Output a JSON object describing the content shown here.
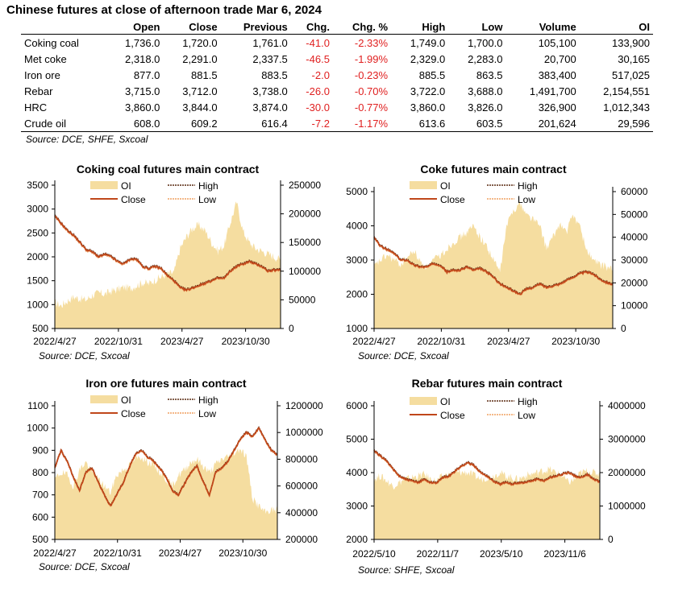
{
  "title": "Chinese futures at close of afternoon trade Mar 6, 2024",
  "table": {
    "headers": [
      "",
      "Open",
      "Close",
      "Previous",
      "Chg.",
      "Chg. %",
      "High",
      "Low",
      "Volume",
      "OI"
    ],
    "rows": [
      [
        "Coking coal",
        "1,736.0",
        "1,720.0",
        "1,761.0",
        "-41.0",
        "-2.33%",
        "1,749.0",
        "1,700.0",
        "105,100",
        "133,900"
      ],
      [
        "Met coke",
        "2,318.0",
        "2,291.0",
        "2,337.5",
        "-46.5",
        "-1.99%",
        "2,329.0",
        "2,283.0",
        "20,700",
        "30,165"
      ],
      [
        "Iron ore",
        "877.0",
        "881.5",
        "883.5",
        "-2.0",
        "-0.23%",
        "885.5",
        "863.5",
        "383,400",
        "517,025"
      ],
      [
        "Rebar",
        "3,715.0",
        "3,712.0",
        "3,738.0",
        "-26.0",
        "-0.70%",
        "3,722.0",
        "3,688.0",
        "1,491,700",
        "2,154,551"
      ],
      [
        "HRC",
        "3,860.0",
        "3,844.0",
        "3,874.0",
        "-30.0",
        "-0.77%",
        "3,860.0",
        "3,826.0",
        "326,900",
        "1,012,343"
      ],
      [
        "Crude oil",
        "608.0",
        "609.2",
        "616.4",
        "-7.2",
        "-1.17%",
        "613.6",
        "603.5",
        "201,624",
        "29,596"
      ]
    ]
  },
  "table_source": "Source: DCE, SHFE, Sxcoal",
  "colors": {
    "oi": "#f5dda0",
    "close": "#c0471a",
    "high": "#5a2a10",
    "low": "#f0a060",
    "negative": "#e02020"
  },
  "chart_data": [
    {
      "type": "area",
      "title": "Coking coal futures main contract",
      "source": "Source: DCE, Sxcoal",
      "x_ticks": [
        "2022/4/27",
        "2022/10/31",
        "2023/4/27",
        "2023/10/30"
      ],
      "y_left": {
        "min": 500,
        "max": 3500,
        "ticks": [
          "500",
          "1000",
          "1500",
          "2000",
          "2500",
          "3000",
          "3500"
        ]
      },
      "y_right": {
        "min": 0,
        "max": 250000,
        "ticks": [
          "0",
          "50000",
          "100000",
          "150000",
          "200000",
          "250000"
        ]
      },
      "legend": [
        "OI",
        "High",
        "Close",
        "Low"
      ],
      "series": [
        {
          "name": "OI",
          "axis": "right",
          "values": [
            45000,
            40000,
            48000,
            55000,
            52000,
            50000,
            58000,
            62000,
            60000,
            65000,
            68000,
            72000,
            70000,
            75000,
            80000,
            78000,
            85000,
            90000,
            95000,
            98000,
            140000,
            160000,
            175000,
            180000,
            170000,
            150000,
            135000,
            145000,
            185000,
            220000,
            170000,
            150000,
            140000,
            135000,
            130000,
            125000,
            120000
          ]
        },
        {
          "name": "Close",
          "axis": "left",
          "values": [
            2850,
            2700,
            2550,
            2450,
            2300,
            2150,
            2100,
            2000,
            2050,
            2000,
            1900,
            1850,
            1950,
            1950,
            1800,
            1750,
            1800,
            1750,
            1600,
            1500,
            1350,
            1300,
            1350,
            1400,
            1450,
            1500,
            1550,
            1550,
            1700,
            1800,
            1850,
            1900,
            1850,
            1800,
            1700,
            1720,
            1720
          ]
        }
      ]
    },
    {
      "type": "area",
      "title": "Coke futures main contract",
      "source": "Source: DCE, Sxcoal",
      "x_ticks": [
        "2022/4/27",
        "2022/10/31",
        "2023/4/27",
        "2023/10/30"
      ],
      "y_left": {
        "min": 1000,
        "max": 5000,
        "ticks": [
          "1000",
          "2000",
          "3000",
          "4000",
          "5000"
        ]
      },
      "y_right": {
        "min": 0,
        "max": 60000,
        "ticks": [
          "0",
          "10000",
          "20000",
          "30000",
          "40000",
          "50000",
          "60000"
        ]
      },
      "legend": [
        "OI",
        "High",
        "Close",
        "Low"
      ],
      "series": [
        {
          "name": "OI",
          "axis": "right",
          "values": [
            27000,
            30000,
            32000,
            30000,
            28000,
            31000,
            34000,
            29000,
            27000,
            30000,
            32000,
            35000,
            38000,
            40000,
            42000,
            45000,
            40000,
            36000,
            30000,
            25000,
            45000,
            52000,
            55000,
            50000,
            48000,
            45000,
            35000,
            40000,
            46000,
            42000,
            50000,
            45000,
            35000,
            30000,
            28000,
            27000,
            26000
          ]
        },
        {
          "name": "Close",
          "axis": "left",
          "values": [
            3650,
            3400,
            3300,
            3200,
            3000,
            3000,
            2850,
            2800,
            2800,
            2900,
            2850,
            2650,
            2700,
            2700,
            2800,
            2700,
            2750,
            2650,
            2500,
            2300,
            2200,
            2100,
            2000,
            2150,
            2200,
            2300,
            2200,
            2250,
            2300,
            2400,
            2500,
            2600,
            2650,
            2600,
            2450,
            2350,
            2291
          ]
        }
      ]
    },
    {
      "type": "area",
      "title": "Iron ore futures main contract",
      "source": "Source: DCE, Sxcoal",
      "x_ticks": [
        "2022/4/27",
        "2022/10/31",
        "2023/4/27",
        "2023/10/30"
      ],
      "y_left": {
        "min": 500,
        "max": 1100,
        "ticks": [
          "500",
          "600",
          "700",
          "800",
          "900",
          "1000",
          "1100"
        ]
      },
      "y_right": {
        "min": 200000,
        "max": 1200000,
        "ticks": [
          "200000",
          "400000",
          "600000",
          "800000",
          "1000000",
          "1200000"
        ]
      },
      "legend": [
        "OI",
        "High",
        "Close",
        "Low"
      ],
      "series": [
        {
          "name": "OI",
          "axis": "right",
          "values": [
            650000,
            700000,
            680000,
            600000,
            720000,
            780000,
            700000,
            650000,
            600000,
            550000,
            680000,
            720000,
            750000,
            800000,
            820000,
            780000,
            760000,
            700000,
            650000,
            600000,
            680000,
            720000,
            780000,
            800000,
            750000,
            700000,
            760000,
            800000,
            820000,
            850000,
            880000,
            820000,
            500000,
            450000,
            400000,
            420000,
            420000
          ]
        },
        {
          "name": "Close",
          "axis": "left",
          "values": [
            820,
            900,
            850,
            780,
            720,
            800,
            820,
            760,
            700,
            650,
            700,
            750,
            820,
            880,
            900,
            870,
            850,
            820,
            780,
            720,
            700,
            750,
            800,
            830,
            760,
            700,
            800,
            820,
            850,
            900,
            950,
            980,
            960,
            1000,
            950,
            900,
            881.5
          ]
        }
      ]
    },
    {
      "type": "area",
      "title": "Rebar futures main contract",
      "source": "Source: SHFE, Sxcoal",
      "x_ticks": [
        "2022/5/10",
        "2022/11/7",
        "2023/5/10",
        "2023/11/6"
      ],
      "y_left": {
        "min": 2000,
        "max": 6000,
        "ticks": [
          "2000",
          "3000",
          "4000",
          "5000",
          "6000"
        ]
      },
      "y_right": {
        "min": 0,
        "max": 4000000,
        "ticks": [
          "0",
          "1000000",
          "2000000",
          "3000000",
          "4000000"
        ]
      },
      "legend": [
        "OI",
        "High",
        "Close",
        "Low"
      ],
      "series": [
        {
          "name": "OI",
          "axis": "right",
          "values": [
            1800000,
            1900000,
            1750000,
            1600000,
            1700000,
            1800000,
            1850000,
            1900000,
            1950000,
            1800000,
            1750000,
            1900000,
            1950000,
            2000000,
            2000000,
            2000000,
            1900000,
            1800000,
            1850000,
            1900000,
            2000000,
            1900000,
            1850000,
            1800000,
            1900000,
            1950000,
            2000000,
            2050000,
            2100000,
            2000000,
            1900000,
            1700000,
            1800000,
            2000000,
            2050000,
            2000000,
            1950000
          ]
        },
        {
          "name": "Close",
          "axis": "left",
          "values": [
            4650,
            4500,
            4350,
            4100,
            3900,
            3800,
            3750,
            3700,
            3800,
            3700,
            3700,
            3850,
            3900,
            4050,
            4200,
            4300,
            4200,
            4000,
            3900,
            3750,
            3650,
            3700,
            3650,
            3700,
            3700,
            3750,
            3800,
            3750,
            3850,
            3900,
            3950,
            4000,
            3900,
            3850,
            3950,
            3800,
            3712
          ]
        }
      ]
    }
  ]
}
